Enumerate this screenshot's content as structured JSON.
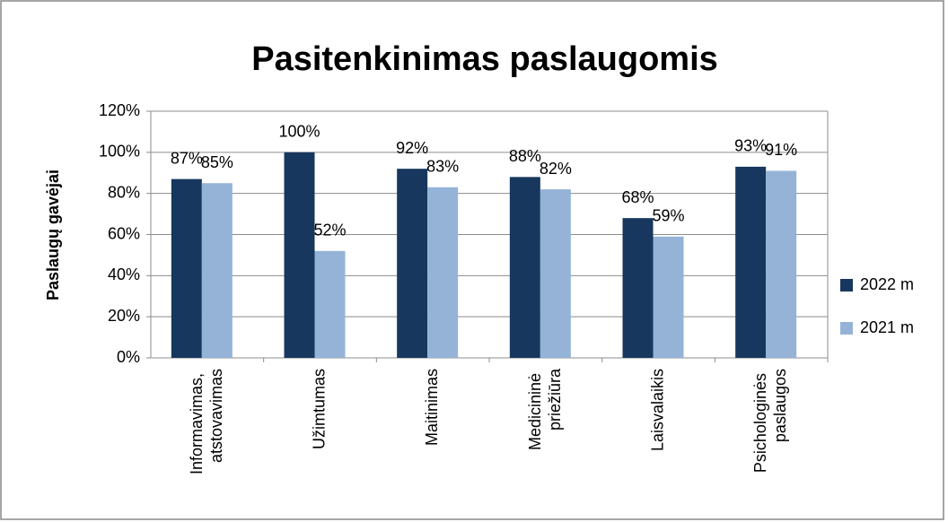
{
  "chart_data": {
    "type": "bar",
    "title": "Pasitenkinimas paslaugomis",
    "ylabel": "Paslaugų gavėjai",
    "categories": [
      "Informavimas, atstovavimas",
      "Užimtumas",
      "Maitinimas",
      "Medicininė priežiūra",
      "Laisvalaikis",
      "Psichologinės paslaugos"
    ],
    "series": [
      {
        "name": "2022 m",
        "color": "#17375e",
        "values": [
          87,
          100,
          92,
          88,
          68,
          93
        ],
        "value_labels": [
          "87%",
          "100%",
          "92%",
          "88%",
          "68%",
          "93%"
        ]
      },
      {
        "name": "2021 m",
        "color": "#95b3d7",
        "values": [
          85,
          52,
          83,
          82,
          59,
          91
        ],
        "value_labels": [
          "85%",
          "52%",
          "83%",
          "82%",
          "59%",
          "91%"
        ]
      }
    ],
    "ylim": [
      0,
      120
    ],
    "yticks": [
      {
        "value": 0,
        "label": "0%"
      },
      {
        "value": 20,
        "label": "20%"
      },
      {
        "value": 40,
        "label": "40%"
      },
      {
        "value": 60,
        "label": "60%"
      },
      {
        "value": 80,
        "label": "80%"
      },
      {
        "value": 100,
        "label": "100%"
      },
      {
        "value": 120,
        "label": "120%"
      }
    ],
    "grid": true,
    "legend": "right"
  }
}
